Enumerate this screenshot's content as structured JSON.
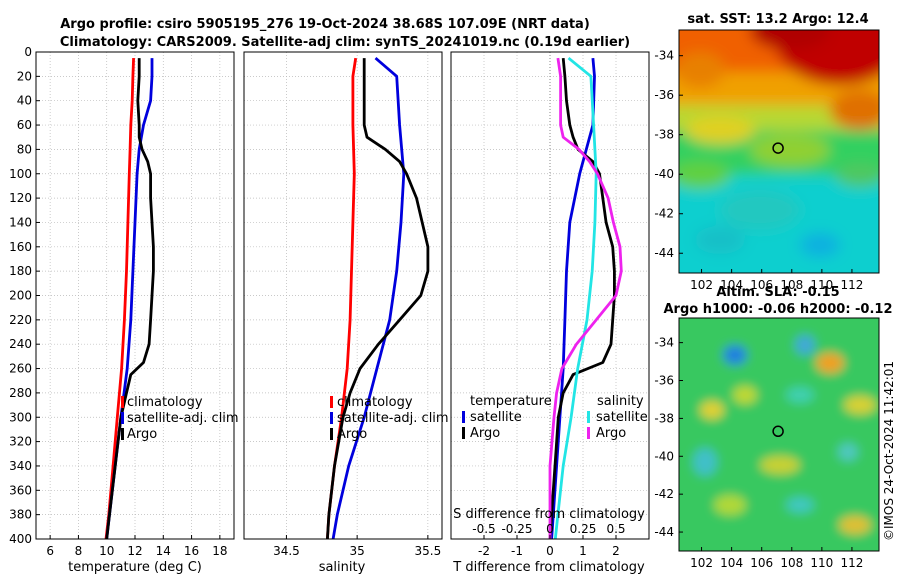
{
  "title": {
    "line1": "Argo profile: csiro 5905195_276 19-Oct-2024 38.68S 107.09E (NRT data)",
    "line2": "Climatology: CARS2009. Satellite-adj clim: synTS_20241019.nc (0.19d earlier)"
  },
  "timestamp": "©IMOS 24-Oct-2024 11:42:01",
  "colors": {
    "climatology": "#ff0000",
    "satellite": "#0000dd",
    "argo": "#000000",
    "sat_salinity": "#22e5e5",
    "argo_salinity": "#ee22ee",
    "grid": "#b8b8b8"
  },
  "chart_data": [
    {
      "type": "line",
      "name": "temperature",
      "xlabel": "temperature (deg C)",
      "ylabel": "",
      "xlim": [
        5,
        19
      ],
      "ylim": [
        400,
        0
      ],
      "xticks": [
        6,
        8,
        10,
        12,
        14,
        16,
        18
      ],
      "yticks": [
        0,
        20,
        40,
        60,
        80,
        100,
        120,
        140,
        160,
        180,
        200,
        220,
        240,
        260,
        280,
        300,
        320,
        340,
        360,
        380,
        400
      ],
      "legend": [
        "climatology",
        "satellite-adj. clim",
        "Argo"
      ],
      "series": [
        {
          "name": "climatology",
          "color": "#ff0000",
          "depth": [
            5,
            20,
            40,
            60,
            80,
            100,
            140,
            180,
            220,
            260,
            300,
            340,
            380,
            400
          ],
          "values": [
            11.9,
            11.85,
            11.8,
            11.7,
            11.65,
            11.6,
            11.5,
            11.4,
            11.25,
            11.05,
            10.75,
            10.45,
            10.15,
            9.95
          ]
        },
        {
          "name": "satellite-adj. clim",
          "color": "#0000dd",
          "depth": [
            5,
            20,
            40,
            60,
            80,
            100,
            140,
            180,
            220,
            260,
            300,
            340,
            380,
            400
          ],
          "values": [
            13.2,
            13.2,
            13.1,
            12.6,
            12.3,
            12.15,
            12.0,
            11.85,
            11.7,
            11.45,
            11.0,
            10.6,
            10.2,
            10.0
          ]
        },
        {
          "name": "Argo",
          "color": "#000000",
          "depth": [
            5,
            20,
            40,
            60,
            70,
            80,
            90,
            100,
            120,
            140,
            160,
            180,
            200,
            220,
            240,
            255,
            265,
            280,
            300,
            340,
            380,
            400
          ],
          "values": [
            12.3,
            12.3,
            12.2,
            12.3,
            12.3,
            12.5,
            12.9,
            13.1,
            13.1,
            13.2,
            13.3,
            13.3,
            13.2,
            13.1,
            13.0,
            12.6,
            11.7,
            11.4,
            11.0,
            10.6,
            10.2,
            10.0
          ]
        }
      ]
    },
    {
      "type": "line",
      "name": "salinity",
      "xlabel": "salinity",
      "ylabel": "",
      "xlim": [
        34.2,
        35.6
      ],
      "ylim": [
        400,
        0
      ],
      "xticks": [
        34.5,
        35,
        35.5
      ],
      "xtick_labels": [
        "34.5",
        "35",
        "35.5"
      ],
      "legend": [
        "climatology",
        "satellite-adj. clim",
        "Argo"
      ],
      "series": [
        {
          "name": "climatology",
          "color": "#ff0000",
          "depth": [
            5,
            20,
            60,
            100,
            140,
            180,
            220,
            260,
            300,
            340,
            380,
            400
          ],
          "values": [
            34.99,
            34.97,
            34.97,
            34.98,
            34.97,
            34.96,
            34.95,
            34.93,
            34.89,
            34.84,
            34.8,
            34.79
          ]
        },
        {
          "name": "satellite-adj. clim",
          "color": "#0000dd",
          "depth": [
            5,
            20,
            60,
            100,
            140,
            180,
            220,
            260,
            300,
            340,
            380,
            400
          ],
          "values": [
            35.13,
            35.28,
            35.3,
            35.33,
            35.31,
            35.28,
            35.23,
            35.14,
            35.05,
            34.94,
            34.86,
            34.83
          ]
        },
        {
          "name": "Argo",
          "color": "#000000",
          "depth": [
            5,
            20,
            40,
            60,
            70,
            80,
            90,
            100,
            120,
            140,
            160,
            180,
            200,
            220,
            240,
            260,
            280,
            300,
            340,
            380,
            400
          ],
          "values": [
            35.05,
            35.05,
            35.05,
            35.05,
            35.07,
            35.2,
            35.3,
            35.35,
            35.42,
            35.46,
            35.5,
            35.5,
            35.45,
            35.3,
            35.15,
            35.02,
            34.95,
            34.9,
            34.84,
            34.8,
            34.79
          ]
        }
      ]
    },
    {
      "type": "line",
      "name": "difference from climatology",
      "xlabel": "T difference from climatology",
      "xlabel_top": "S difference from climatology",
      "xlim": [
        -3,
        3
      ],
      "ylim": [
        400,
        0
      ],
      "xticks": [
        -2,
        -1,
        0,
        1,
        2
      ],
      "s_xticks": [
        -0.5,
        -0.25,
        0,
        0.25,
        0.5
      ],
      "s_xtick_labels": [
        "-0.5",
        "-0.25",
        "0",
        "0.25",
        "0.5"
      ],
      "legend_temperature": {
        "header": "temperature",
        "items": [
          "satellite",
          "Argo"
        ]
      },
      "legend_salinity": {
        "header": "salinity",
        "items": [
          "satellite",
          "Argo"
        ]
      },
      "series": [
        {
          "name": "T satellite",
          "color": "#0000dd",
          "depth": [
            5,
            20,
            60,
            100,
            140,
            180,
            220,
            260,
            300,
            340,
            380,
            400
          ],
          "values": [
            1.3,
            1.35,
            1.3,
            0.9,
            0.6,
            0.5,
            0.45,
            0.4,
            0.3,
            0.2,
            0.1,
            0.05
          ]
        },
        {
          "name": "T Argo",
          "color": "#000000",
          "depth": [
            5,
            20,
            40,
            60,
            70,
            80,
            90,
            100,
            120,
            140,
            160,
            180,
            200,
            220,
            240,
            255,
            265,
            280,
            300,
            340,
            380,
            400
          ],
          "values": [
            0.4,
            0.45,
            0.5,
            0.6,
            0.7,
            0.85,
            1.3,
            1.5,
            1.6,
            1.7,
            1.9,
            1.95,
            1.95,
            1.9,
            1.85,
            1.6,
            0.7,
            0.4,
            0.25,
            0.15,
            0.05,
            0.0
          ]
        },
        {
          "name": "S satellite",
          "color": "#22e5e5",
          "depth": [
            5,
            20,
            60,
            100,
            140,
            180,
            220,
            260,
            300,
            340,
            380,
            400
          ],
          "values": [
            0.14,
            0.31,
            0.33,
            0.35,
            0.34,
            0.32,
            0.28,
            0.21,
            0.16,
            0.1,
            0.06,
            0.04
          ]
        },
        {
          "name": "S Argo",
          "color": "#ee22ee",
          "depth": [
            5,
            20,
            40,
            60,
            70,
            80,
            90,
            100,
            120,
            140,
            160,
            180,
            200,
            220,
            240,
            260,
            280,
            300,
            340,
            380,
            400
          ],
          "values": [
            0.06,
            0.08,
            0.08,
            0.08,
            0.1,
            0.22,
            0.3,
            0.36,
            0.44,
            0.48,
            0.53,
            0.54,
            0.5,
            0.35,
            0.2,
            0.09,
            0.05,
            0.03,
            0.0,
            0.0,
            0.0
          ]
        }
      ]
    },
    {
      "type": "heatmap",
      "name": "sst-map",
      "title": "sat. SST: 13.2  Argo: 12.4",
      "xticks": [
        102,
        104,
        106,
        108,
        110,
        112
      ],
      "yticks": [
        -34,
        -36,
        -38,
        -40,
        -42,
        -44
      ],
      "xlim": [
        100.5,
        113.8
      ],
      "ylim": [
        -45,
        -32.7
      ],
      "marker": [
        107.09,
        -38.68
      ]
    },
    {
      "type": "heatmap",
      "name": "sla-map",
      "title_line1": "Altim. SLA: -0.15",
      "title_line2": "Argo h1000: -0.06 h2000: -0.12",
      "xticks": [
        102,
        104,
        106,
        108,
        110,
        112
      ],
      "yticks": [
        -34,
        -36,
        -38,
        -40,
        -42,
        -44
      ],
      "xlim": [
        100.5,
        113.8
      ],
      "ylim": [
        -45,
        -32.7
      ],
      "marker": [
        107.09,
        -38.68
      ]
    }
  ]
}
